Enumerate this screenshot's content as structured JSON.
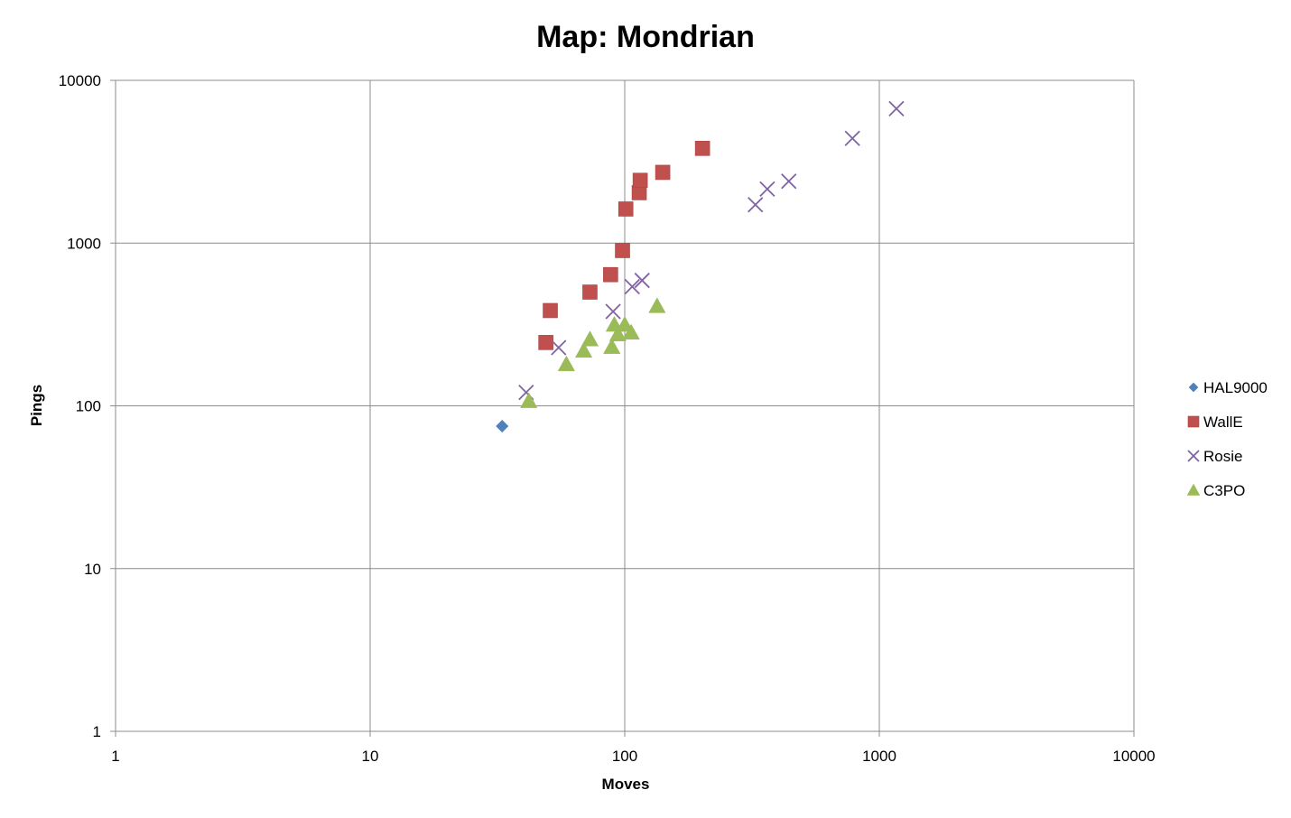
{
  "chart_data": {
    "type": "scatter",
    "title": "Map: Mondrian",
    "xlabel": "Moves",
    "ylabel": "Pings",
    "xscale": "log",
    "yscale": "log",
    "xlim": [
      1,
      10000
    ],
    "ylim": [
      1,
      10000
    ],
    "xticks": [
      "1",
      "10",
      "100",
      "1000",
      "10000"
    ],
    "yticks": [
      "1",
      "10",
      "100",
      "1000",
      "10000"
    ],
    "grid": true,
    "legend_position": "right",
    "series": [
      {
        "name": "HAL9000",
        "marker": "diamond",
        "color": "#4f81bd",
        "points": [
          [
            33,
            75
          ]
        ]
      },
      {
        "name": "WallE",
        "marker": "square",
        "color": "#c0504d",
        "points": [
          [
            49,
            245
          ],
          [
            51,
            385
          ],
          [
            73,
            500
          ],
          [
            88,
            640
          ],
          [
            98,
            900
          ],
          [
            101,
            1620
          ],
          [
            114,
            2040
          ],
          [
            115,
            2430
          ],
          [
            141,
            2720
          ],
          [
            202,
            3820
          ]
        ]
      },
      {
        "name": "Rosie",
        "marker": "x",
        "color": "#8064a2",
        "points": [
          [
            41,
            121
          ],
          [
            55,
            228
          ],
          [
            90,
            380
          ],
          [
            107,
            540
          ],
          [
            117,
            590
          ],
          [
            326,
            1720
          ],
          [
            363,
            2150
          ],
          [
            441,
            2400
          ],
          [
            784,
            4400
          ],
          [
            1167,
            6700
          ]
        ]
      },
      {
        "name": "C3PO",
        "marker": "triangle",
        "color": "#9bbb59",
        "points": [
          [
            42,
            107
          ],
          [
            59,
            180
          ],
          [
            69,
            218
          ],
          [
            73,
            256
          ],
          [
            89,
            230
          ],
          [
            91,
            315
          ],
          [
            94,
            275
          ],
          [
            100,
            315
          ],
          [
            106,
            282
          ],
          [
            134,
            410
          ]
        ]
      }
    ]
  }
}
